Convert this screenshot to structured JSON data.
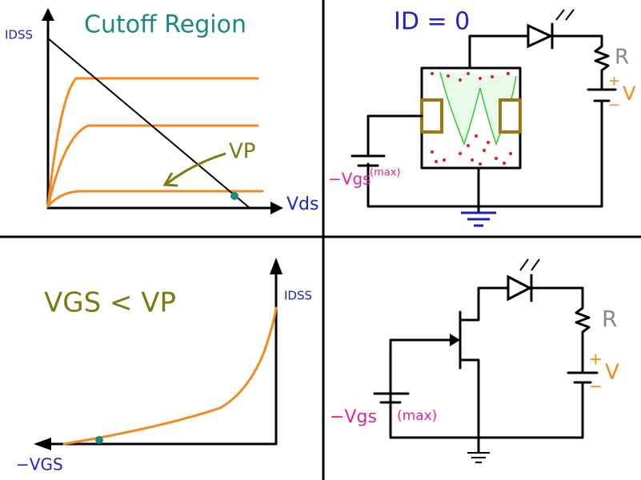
{
  "panels": [
    {
      "title": "Cutoff Region",
      "y_axis": "IDSS",
      "x_axis": "Vds",
      "annotation": "VP"
    },
    {
      "title": "ID = 0",
      "resistor": "R",
      "plus": "+",
      "minus": "−",
      "source": "V",
      "gate_voltage": "−Vgs",
      "gate_note": "(max)"
    },
    {
      "title": "VGS < VP",
      "y_axis": "IDSS",
      "x_axis": "−VGS"
    },
    {
      "resistor": "R",
      "plus": "+",
      "minus": "−",
      "source": "V",
      "gate_voltage": "−Vgs",
      "gate_note": "(max)"
    }
  ]
}
